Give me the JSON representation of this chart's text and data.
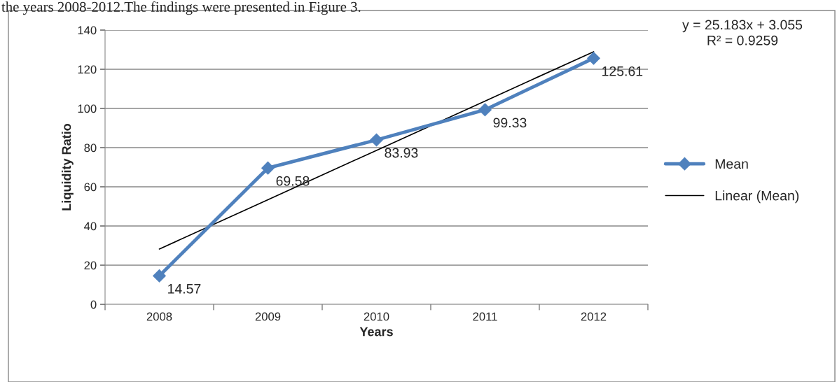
{
  "chart_data": {
    "type": "line",
    "xlabel": "Years",
    "ylabel": "Liquidity Ratio",
    "categories": [
      "2008",
      "2009",
      "2010",
      "2011",
      "2012"
    ],
    "series": [
      {
        "name": "Mean",
        "color": "#4f81bd",
        "values": [
          14.57,
          69.58,
          83.93,
          99.33,
          125.61
        ],
        "value_labels": [
          "14.57",
          "69.58",
          "83.93",
          "99.33",
          "125.61"
        ],
        "marker": "diamond",
        "line_style": "solid"
      },
      {
        "name": "Linear (Mean)",
        "color": "#000000",
        "values": [
          28.24,
          53.42,
          78.6,
          103.79,
          128.97
        ],
        "marker": "none",
        "line_style": "solid"
      }
    ],
    "ylim": [
      0,
      140
    ],
    "yticks": [
      0,
      20,
      40,
      60,
      80,
      100,
      120,
      140
    ],
    "grid": "y",
    "legend": "right",
    "annotations": [
      "y = 25.183x + 3.055\nR² = 0.9259",
      "the years 2008-2012.The findings were presented in Figure 3."
    ]
  }
}
